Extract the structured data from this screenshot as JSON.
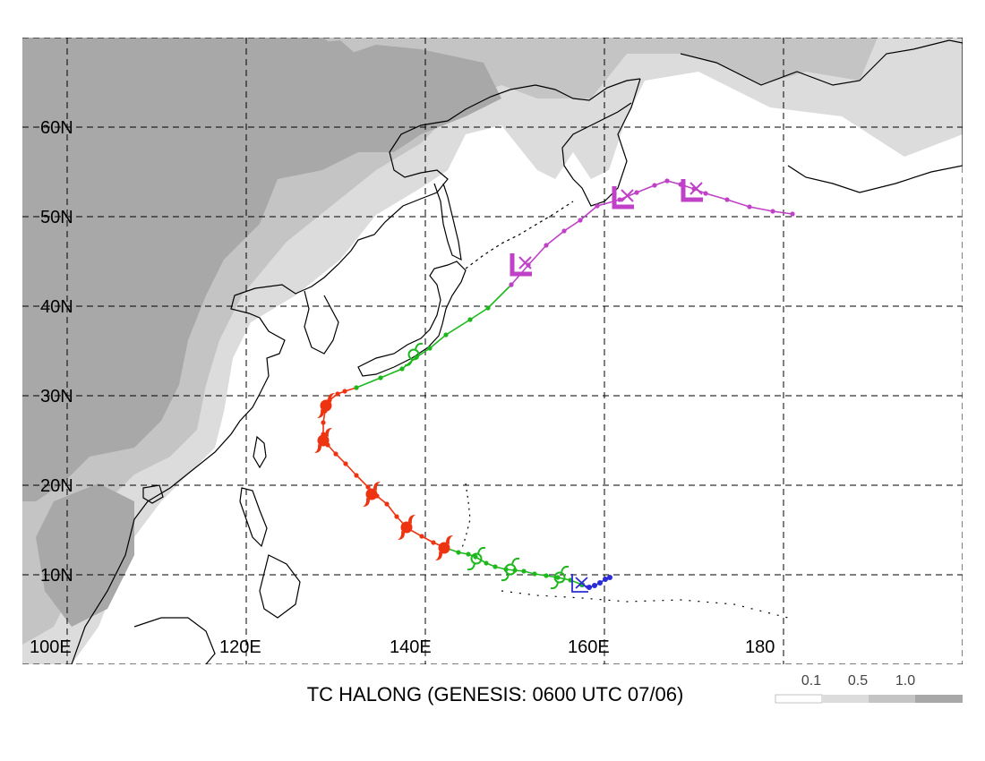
{
  "title": "TC HALONG (GENESIS: 0600 UTC 07/06)",
  "lat_labels": [
    "60N",
    "50N",
    "40N",
    "30N",
    "20N",
    "10N"
  ],
  "lon_labels": [
    "100E",
    "120E",
    "140E",
    "160E",
    "180"
  ],
  "legend": {
    "labels": [
      "0.1",
      "0.5",
      "1.0"
    ],
    "colors": [
      "#ffffff",
      "#dcdcdc",
      "#c4c4c4",
      "#a8a8a8"
    ]
  },
  "colors": {
    "track_blue": "#2b2bd8",
    "track_green": "#1cb81c",
    "track_red": "#ee3311",
    "track_magenta": "#c040c8",
    "shade_light": "#dcdcdc",
    "shade_mid": "#c4c4c4",
    "shade_dark": "#a8a8a8"
  },
  "track": {
    "blue": [
      [
        157.5,
        8.9
      ],
      [
        158.3,
        8.6
      ],
      [
        158.9,
        8.8
      ],
      [
        159.5,
        9.1
      ],
      [
        160.1,
        9.5
      ],
      [
        160.6,
        9.7
      ]
    ],
    "green_south": [
      [
        157.5,
        8.9
      ],
      [
        156.2,
        9.4
      ],
      [
        154.8,
        9.7
      ],
      [
        153.5,
        9.9
      ],
      [
        152.2,
        10.1
      ],
      [
        151.0,
        10.4
      ],
      [
        150.0,
        10.5
      ],
      [
        149.0,
        10.6
      ],
      [
        147.8,
        10.9
      ],
      [
        146.8,
        11.3
      ],
      [
        145.6,
        12.0
      ],
      [
        144.8,
        12.3
      ],
      [
        143.7,
        12.5
      ],
      [
        142.3,
        13.0
      ]
    ],
    "red": [
      [
        142.3,
        13.0
      ],
      [
        140.9,
        13.6
      ],
      [
        139.6,
        14.3
      ],
      [
        138.0,
        15.2
      ],
      [
        136.8,
        16.5
      ],
      [
        135.7,
        17.9
      ],
      [
        134.6,
        18.8
      ],
      [
        133.6,
        19.8
      ],
      [
        132.3,
        21.1
      ],
      [
        131.1,
        22.4
      ],
      [
        130.0,
        23.5
      ],
      [
        129.1,
        24.5
      ],
      [
        128.6,
        25.7
      ],
      [
        128.6,
        27.0
      ],
      [
        128.8,
        28.3
      ],
      [
        129.3,
        29.5
      ],
      [
        130.2,
        30.2
      ],
      [
        131.0,
        30.5
      ],
      [
        132.3,
        30.9
      ]
    ],
    "green_north": [
      [
        132.3,
        30.9
      ],
      [
        135.0,
        32.0
      ],
      [
        137.4,
        33.0
      ],
      [
        139.0,
        34.3
      ],
      [
        140.5,
        35.3
      ],
      [
        142.3,
        36.8
      ],
      [
        145.0,
        38.5
      ],
      [
        147.0,
        39.8
      ],
      [
        149.6,
        42.4
      ]
    ],
    "magenta": [
      [
        149.6,
        42.4
      ],
      [
        151.5,
        44.6
      ],
      [
        153.5,
        46.8
      ],
      [
        155.5,
        48.4
      ],
      [
        157.3,
        49.6
      ],
      [
        159.2,
        51.2
      ],
      [
        161.7,
        51.9
      ],
      [
        163.6,
        52.7
      ],
      [
        165.6,
        53.5
      ],
      [
        167.0,
        54.0
      ],
      [
        168.5,
        53.6
      ],
      [
        170.0,
        53.1
      ],
      [
        171.3,
        52.6
      ],
      [
        173.7,
        51.9
      ],
      [
        176.2,
        51.1
      ],
      [
        178.8,
        50.6
      ],
      [
        181.0,
        50.3
      ]
    ]
  },
  "symbols": {
    "low_markers": [
      [
        150.8,
        44.7
      ],
      [
        162.2,
        52.2
      ],
      [
        169.9,
        53.0
      ]
    ],
    "genesis_marker": [
      157.3,
      9.1
    ],
    "hurricane_markers": [
      [
        142.1,
        13.0
      ],
      [
        137.9,
        15.3
      ],
      [
        134.0,
        19.0
      ],
      [
        128.6,
        25.0
      ],
      [
        128.9,
        28.9
      ]
    ],
    "storm_markers": [
      [
        155.0,
        9.7
      ],
      [
        149.5,
        10.6
      ],
      [
        145.7,
        11.8
      ],
      [
        138.7,
        34.6
      ]
    ]
  }
}
